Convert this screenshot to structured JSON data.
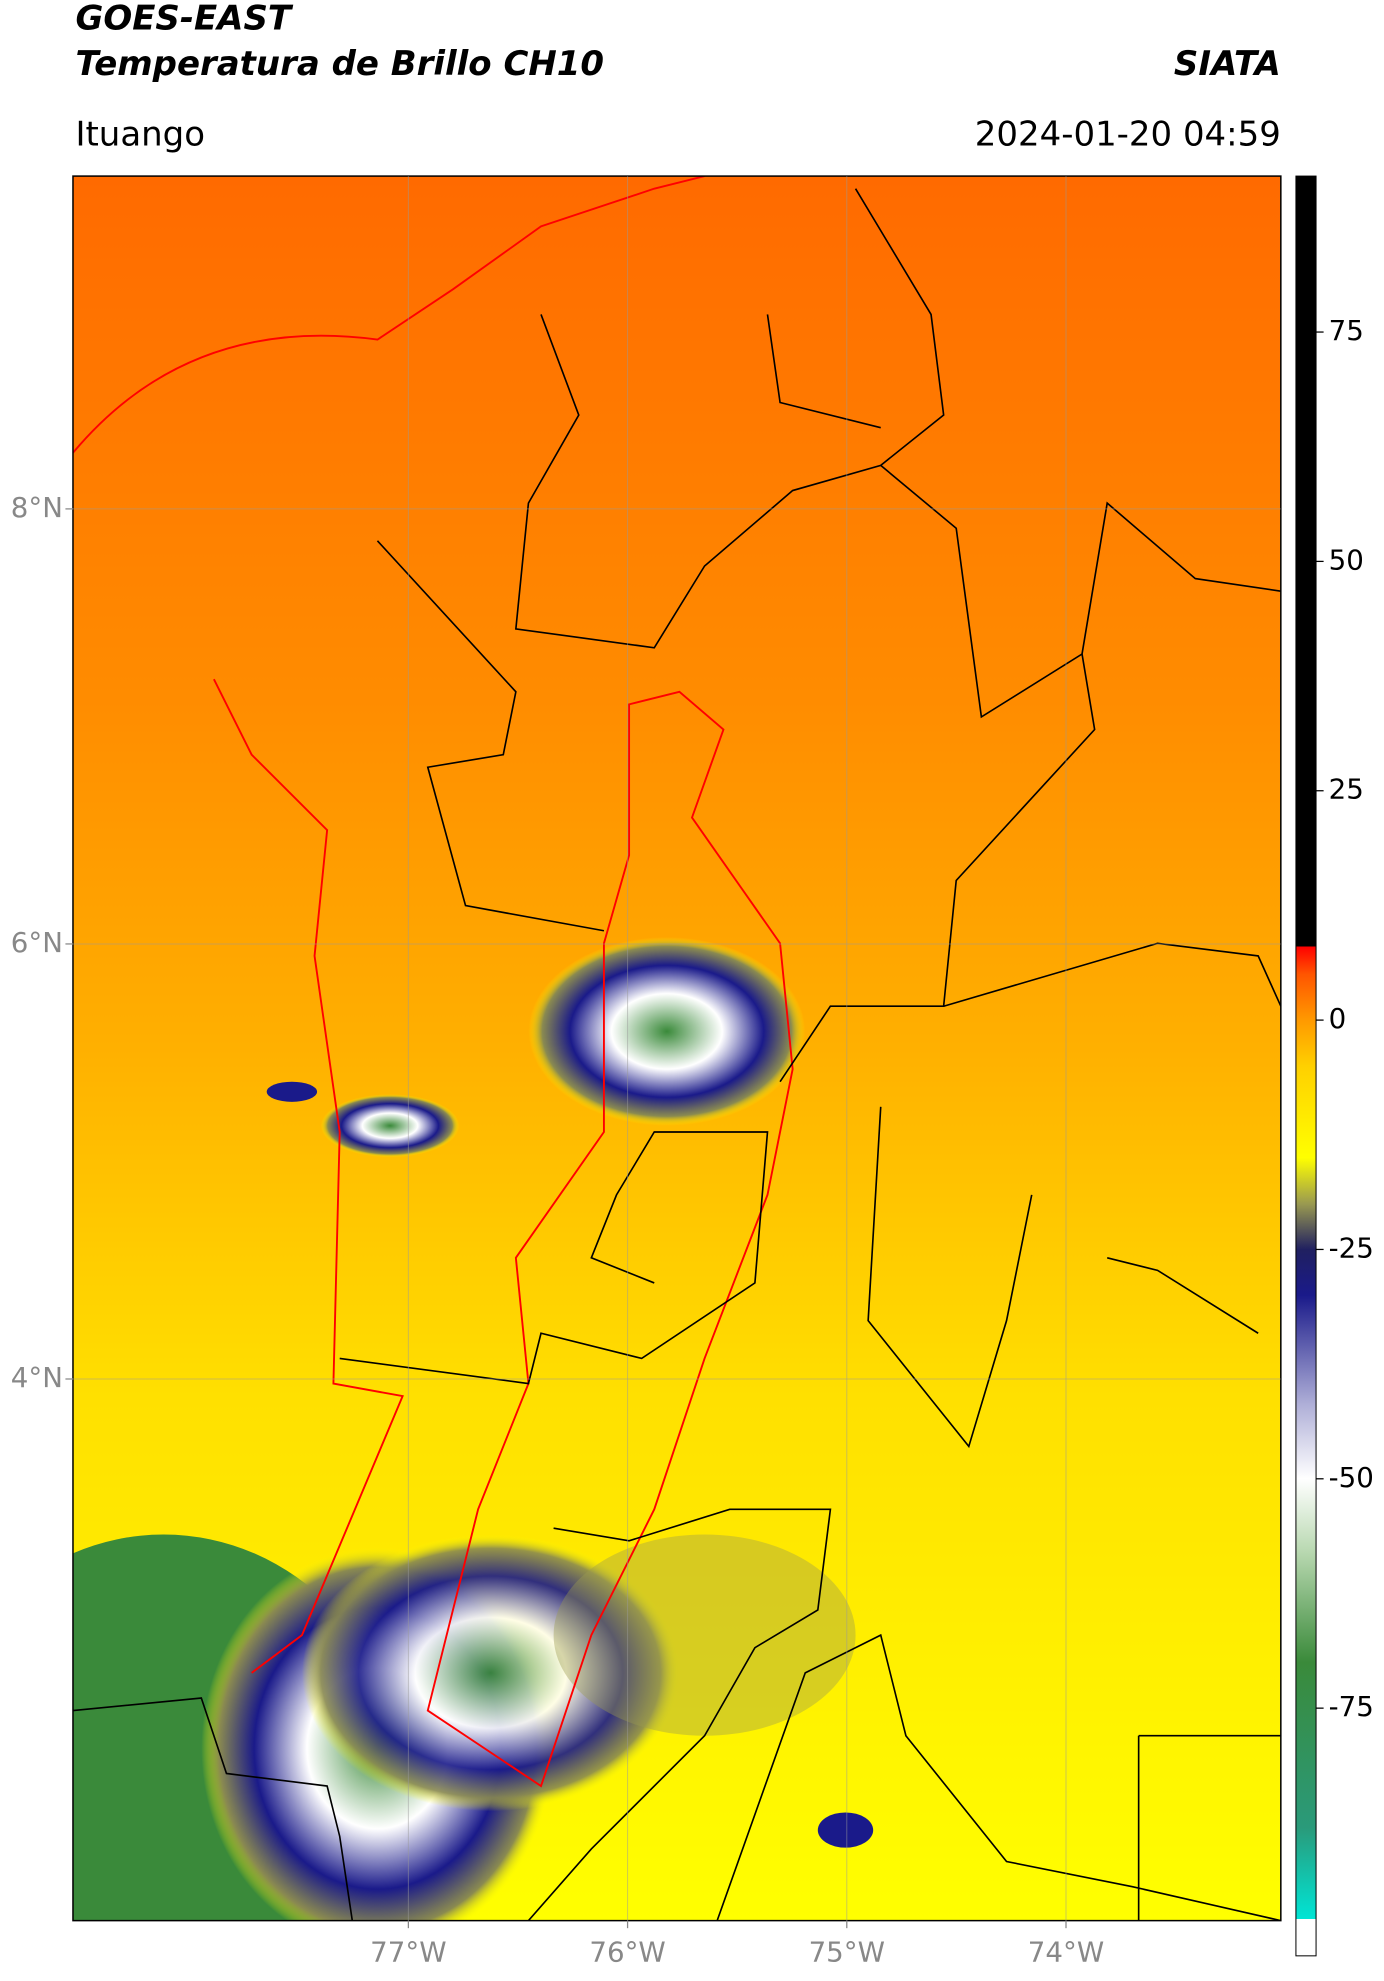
{
  "header": {
    "title": "GOES-EAST",
    "subtitle": "Temperatura de Brillo CH10",
    "brand": "SIATA",
    "location": "Ituango",
    "timestamp": "2024-01-20 04:59"
  },
  "map": {
    "xlim": [
      -78.53,
      -73.02
    ],
    "ylim": [
      1.51,
      9.53
    ],
    "grid": true,
    "xticks": [
      {
        "value": -77,
        "label": "77°W"
      },
      {
        "value": -76,
        "label": "76°W"
      },
      {
        "value": -75,
        "label": "75°W"
      },
      {
        "value": -74,
        "label": "74°W"
      }
    ],
    "yticks": [
      {
        "value": 8,
        "label": "8°N"
      },
      {
        "value": 6,
        "label": "6°N"
      },
      {
        "value": 4,
        "label": "4°N"
      }
    ]
  },
  "colorbar": {
    "lim": [
      -102,
      92
    ],
    "ticks": [
      75,
      50,
      25,
      0,
      -25,
      -50,
      -75
    ],
    "colormap": [
      {
        "value": -102,
        "color": "#ffffff"
      },
      {
        "value": -98,
        "color": "#ffffff"
      },
      {
        "value": -98,
        "color": "#00e5d5"
      },
      {
        "value": -88,
        "color": "#2a9a7a"
      },
      {
        "value": -70,
        "color": "#3a8a3a"
      },
      {
        "value": -58,
        "color": "#b8d8b0"
      },
      {
        "value": -50,
        "color": "#ffffff"
      },
      {
        "value": -42,
        "color": "#b0b0d8"
      },
      {
        "value": -30,
        "color": "#1a1a8a"
      },
      {
        "value": -25,
        "color": "#202060"
      },
      {
        "value": -20,
        "color": "#9a9a50"
      },
      {
        "value": -15,
        "color": "#ffff00"
      },
      {
        "value": -5,
        "color": "#ffd000"
      },
      {
        "value": 0,
        "color": "#ff9900"
      },
      {
        "value": 5,
        "color": "#ff5500"
      },
      {
        "value": 8,
        "color": "#ff0000"
      },
      {
        "value": 8,
        "color": "#000000"
      },
      {
        "value": 92,
        "color": "#000000"
      }
    ]
  }
}
